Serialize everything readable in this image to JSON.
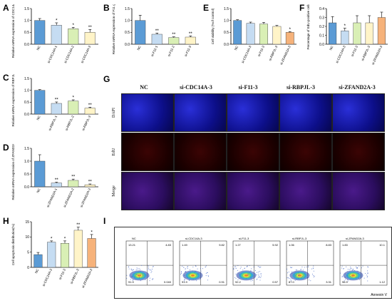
{
  "labels": {
    "A": "A",
    "B": "B",
    "C": "C",
    "D": "D",
    "E": "E",
    "F": "F",
    "G": "G",
    "H": "H",
    "I": "I"
  },
  "colors": {
    "nc": "#5b9bd5",
    "c1": "#c5dcf2",
    "c2": "#d9efb5",
    "c3": "#fff4c8",
    "c4": "#f6b27a",
    "edge": "#333333"
  },
  "chart_data": [
    {
      "id": "A",
      "type": "bar",
      "ylabel": "Relative mRNA expression of CDC14A gene",
      "categories": [
        "NC",
        "si-CDC14A-1",
        "si-CDC14A-2",
        "si-CDC14A-3"
      ],
      "values": [
        1.0,
        0.8,
        0.65,
        0.5
      ],
      "errors": [
        0.08,
        0.1,
        0.06,
        0.12
      ],
      "sig": [
        "",
        "*",
        "*",
        "**"
      ],
      "ylim": [
        0,
        1.5
      ],
      "yticks": [
        "0.0",
        "0.5",
        "1.0",
        "1.5"
      ]
    },
    {
      "id": "B",
      "type": "bar",
      "ylabel": "Relative mRNA expression of F11 gene",
      "categories": [
        "NC",
        "si-F11-1",
        "si-F11-2",
        "si-F11-3"
      ],
      "values": [
        1.0,
        0.42,
        0.28,
        0.3
      ],
      "errors": [
        0.22,
        0.05,
        0.03,
        0.05
      ],
      "sig": [
        "",
        "**",
        "**",
        "**"
      ],
      "ylim": [
        0,
        1.5
      ],
      "yticks": [
        "0.0",
        "0.5",
        "1.0",
        "1.5"
      ]
    },
    {
      "id": "C",
      "type": "bar",
      "ylabel": "Relative mRNA expression of RBPJL gene",
      "categories": [
        "NC",
        "si-RBPJL-1",
        "si-RBPJL-2",
        "si-RBPJL-3"
      ],
      "values": [
        1.0,
        0.45,
        0.55,
        0.25
      ],
      "errors": [
        0.03,
        0.06,
        0.05,
        0.04
      ],
      "sig": [
        "",
        "**",
        "*",
        "**"
      ],
      "ylim": [
        0,
        1.5
      ],
      "yticks": [
        "0.0",
        "0.5",
        "1.0",
        "1.5"
      ]
    },
    {
      "id": "D",
      "type": "bar",
      "ylabel": "Relative mRNA expression of ZFAND2A gene",
      "categories": [
        "NC",
        "si-ZFAND2A-1",
        "si-ZFAND2A-2",
        "si-ZFAND2A-3"
      ],
      "values": [
        1.0,
        0.15,
        0.25,
        0.08
      ],
      "errors": [
        0.25,
        0.03,
        0.05,
        0.03
      ],
      "sig": [
        "",
        "**",
        "**",
        "**"
      ],
      "ylim": [
        0,
        1.5
      ],
      "yticks": [
        "0.0",
        "0.5",
        "1.0",
        "1.5"
      ]
    },
    {
      "id": "E",
      "type": "bar",
      "ylabel": "Cell viability (%of control)",
      "categories": [
        "NC",
        "si-CDC14A-3",
        "si-F11-3",
        "si-RBPJL-3",
        "si-ZFAND2A-3"
      ],
      "values": [
        1.0,
        0.88,
        0.85,
        0.75,
        0.5
      ],
      "errors": [
        0.03,
        0.05,
        0.07,
        0.04,
        0.03
      ],
      "sig": [
        "",
        "",
        "",
        "",
        "*"
      ],
      "ylim": [
        0,
        1.5
      ],
      "yticks": [
        "0.0",
        "0.5",
        "1.0",
        "1.5"
      ]
    },
    {
      "id": "F",
      "type": "bar",
      "ylabel": "Percentage of EdU-positive cells",
      "categories": [
        "NC",
        "si-CDC14A-3",
        "si-F11-3",
        "si-RBPJL-3",
        "si-ZFAND2A-3"
      ],
      "values": [
        0.24,
        0.15,
        0.24,
        0.24,
        0.3
      ],
      "errors": [
        0.07,
        0.03,
        0.08,
        0.08,
        0.06
      ],
      "sig": [
        "",
        "*",
        "",
        "",
        ""
      ],
      "ylim": [
        0,
        0.4
      ],
      "yticks": [
        "0.0",
        "0.1",
        "0.2",
        "0.3",
        "0.4"
      ]
    },
    {
      "id": "H",
      "type": "bar",
      "ylabel": "Cell apoptosis distribution(%)",
      "categories": [
        "NC",
        "si-CDC14A-3",
        "si-F11-3",
        "si-RBPJL-3",
        "si-ZFAND2A-3"
      ],
      "values": [
        4.2,
        8.3,
        7.9,
        12.2,
        9.5
      ],
      "errors": [
        0.7,
        0.4,
        0.8,
        1.0,
        1.3
      ],
      "sig": [
        "",
        "*",
        "*",
        "**",
        "*"
      ],
      "ylim": [
        0,
        15
      ],
      "yticks": [
        "0",
        "5",
        "10",
        "15"
      ]
    }
  ],
  "G": {
    "columns": [
      "NC",
      "si-CDC14A-3",
      "si-F11-3",
      "si-RBPJL-3",
      "si-ZFAND2A-3"
    ],
    "rows": [
      "DAPI",
      "EdU",
      "Merge"
    ]
  },
  "I": {
    "xlabel": "Annexin V",
    "plots": [
      {
        "title": "NC",
        "q": [
          "13.21",
          "4.83",
          "91.9",
          "0.040"
        ]
      },
      {
        "title": "si-CDC14A-3",
        "q": [
          "1.49",
          "9.82",
          "91.9",
          "0.91"
        ]
      },
      {
        "title": "si-F11-3",
        "q": [
          "1.27",
          "5.92",
          "92.2",
          "0.57"
        ]
      },
      {
        "title": "si-RBPJL-3",
        "q": [
          "1.06",
          "8.83",
          "87.0",
          "3.31"
        ]
      },
      {
        "title": "si-ZFAND2A-3",
        "q": [
          "1.83",
          "10.1",
          "96.9",
          "1.12"
        ]
      }
    ]
  }
}
